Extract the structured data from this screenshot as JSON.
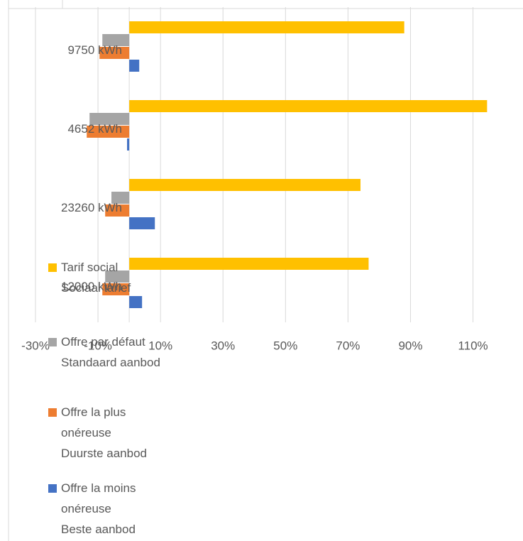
{
  "chart_data": {
    "type": "hbar",
    "categories": [
      "9750 kWh",
      "4652 kWh",
      "23260 kWh",
      "12000 kWh"
    ],
    "series": [
      {
        "name": "Tarif social\nSociaal tarief",
        "color": "#ffc000",
        "values": [
          88,
          114.5,
          74,
          76.6
        ]
      },
      {
        "name": "Offre par défaut\nStandaard aanbod",
        "color": "#a5a5a5",
        "values": [
          -8.6,
          -12.7,
          -5.7,
          -7.7
        ]
      },
      {
        "name": "Offre la plus\nonéreuse\nDuurste aanbod",
        "color": "#ed7d31",
        "values": [
          -9.5,
          -13.6,
          -7.7,
          -8.6
        ]
      },
      {
        "name": "Offre la moins\nonéreuse\nBeste aanbod",
        "color": "#4472c4",
        "values": [
          3.2,
          -0.7,
          8.2,
          4.1
        ]
      }
    ],
    "xlim": [
      -30,
      126
    ],
    "xticks": [
      {
        "value": -30,
        "label": "-30%"
      },
      {
        "value": -10,
        "label": "-10%"
      },
      {
        "value": 10,
        "label": "10%"
      },
      {
        "value": 30,
        "label": "30%"
      },
      {
        "value": 50,
        "label": "50%"
      },
      {
        "value": 70,
        "label": "70%"
      },
      {
        "value": 90,
        "label": "90%"
      },
      {
        "value": 110,
        "label": "110%"
      }
    ],
    "grid": true
  }
}
